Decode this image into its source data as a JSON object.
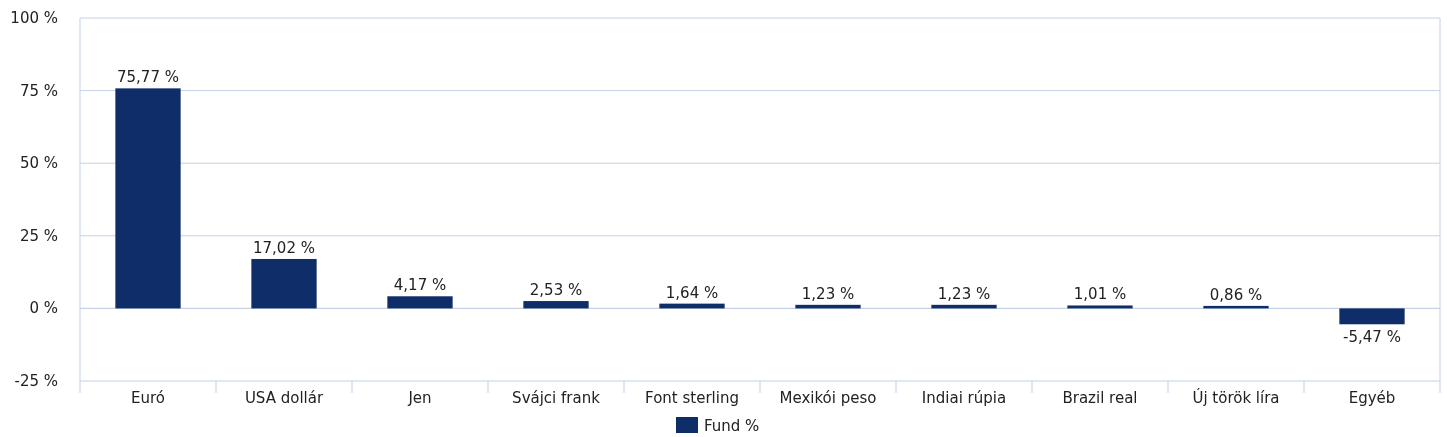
{
  "chart_data": {
    "type": "bar",
    "categories": [
      "Euró",
      "USA dollár",
      "Jen",
      "Svájci frank",
      "Font sterling",
      "Mexikói peso",
      "Indiai rúpia",
      "Brazil real",
      "Új török líra",
      "Egyéb"
    ],
    "series": [
      {
        "name": "Fund %",
        "color": "#0f2d69",
        "values": [
          75.77,
          17.02,
          4.17,
          2.53,
          1.64,
          1.23,
          1.23,
          1.01,
          0.86,
          -5.47
        ]
      }
    ],
    "value_labels": [
      "75,77 %",
      "17,02 %",
      "4,17 %",
      "2,53 %",
      "1,64 %",
      "1,23 %",
      "1,23 %",
      "1,01 %",
      "0,86 %",
      "-5,47 %"
    ],
    "ylim": [
      -25,
      100
    ],
    "yticks": [
      {
        "value": -25,
        "label": "-25 %"
      },
      {
        "value": 0,
        "label": "0 %"
      },
      {
        "value": 25,
        "label": "25 %"
      },
      {
        "value": 50,
        "label": "50 %"
      },
      {
        "value": 75,
        "label": "75 %"
      },
      {
        "value": 100,
        "label": "100 %"
      }
    ],
    "grid": "y",
    "legend": "bottom"
  }
}
